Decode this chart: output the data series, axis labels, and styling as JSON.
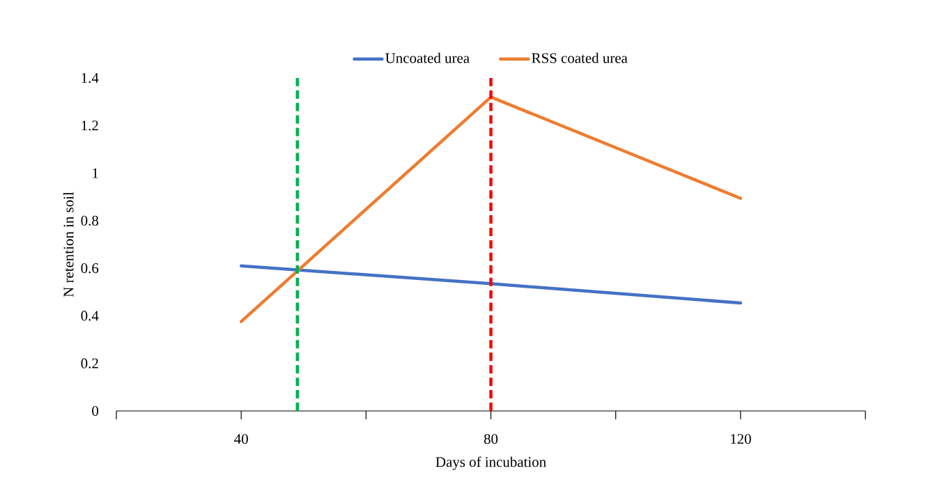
{
  "chart_data": {
    "type": "line",
    "xlabel": "Days of incubation",
    "ylabel": "N retention in soil",
    "x": [
      40,
      80,
      120
    ],
    "series": [
      {
        "name": "Uncoated urea",
        "color": "#4472c4",
        "values": [
          0.61,
          0.535,
          0.454
        ]
      },
      {
        "name": "RSS coated urea",
        "color": "#ed7d31",
        "values": [
          0.376,
          1.32,
          0.894
        ]
      }
    ],
    "xlim": [
      20,
      140
    ],
    "xticks": [
      {
        "value": 20,
        "label": null
      },
      40,
      {
        "value": 60,
        "label": null
      },
      80,
      {
        "value": 100,
        "label": null
      },
      120,
      {
        "value": 140,
        "label": null
      }
    ],
    "ylim": [
      0,
      1.4
    ],
    "yticks": [
      0,
      0.2,
      0.4,
      0.6,
      0.8,
      1,
      1.2,
      1.4
    ],
    "ref_lines": [
      {
        "axis": "x",
        "value": 49,
        "color": "#00b050",
        "line_style": "dashed"
      },
      {
        "axis": "x",
        "value": 80,
        "color": "#ff0000",
        "line_style": "dashed"
      }
    ],
    "legend": "top",
    "grid": false,
    "marker": "none",
    "line_style": "solid"
  }
}
